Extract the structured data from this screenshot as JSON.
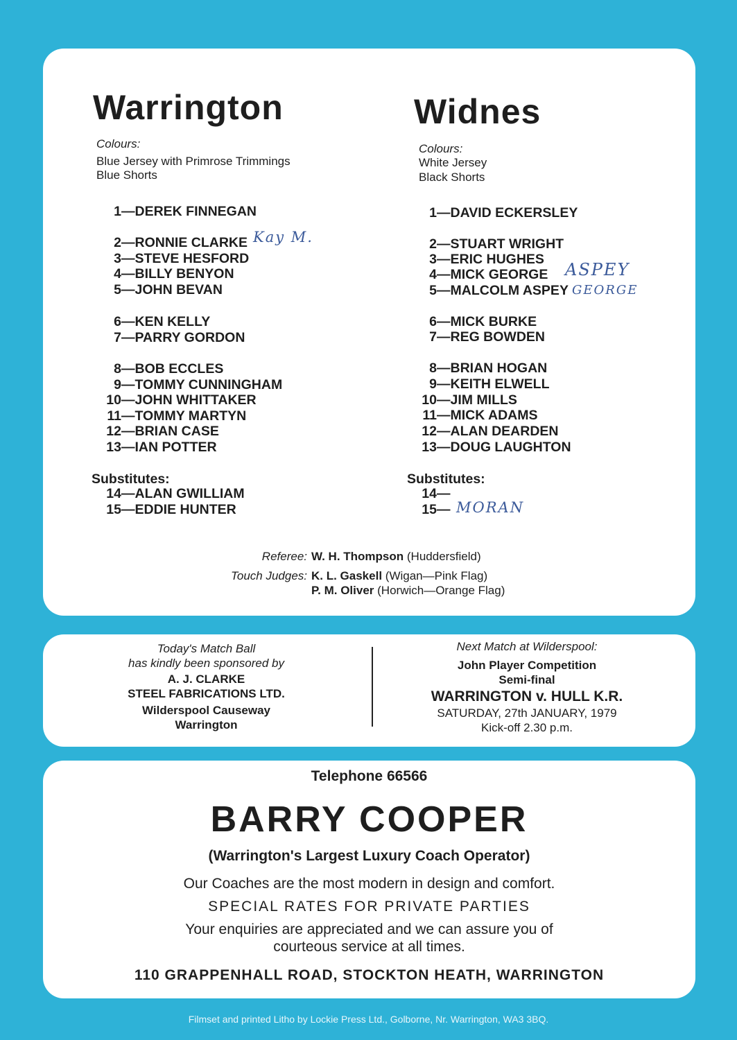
{
  "home": {
    "name": "Warrington",
    "colours_label": "Colours:",
    "colours": [
      "Blue Jersey with Primrose Trimmings",
      "Blue Shorts"
    ],
    "players": [
      {
        "no": "1",
        "name": "DEREK FINNEGAN"
      },
      {
        "no": "2",
        "name": "RONNIE CLARKE"
      },
      {
        "no": "3",
        "name": "STEVE HESFORD"
      },
      {
        "no": "4",
        "name": "BILLY BENYON"
      },
      {
        "no": "5",
        "name": "JOHN BEVAN"
      },
      {
        "no": "6",
        "name": "KEN KELLY"
      },
      {
        "no": "7",
        "name": "PARRY GORDON"
      },
      {
        "no": "8",
        "name": "BOB ECCLES"
      },
      {
        "no": "9",
        "name": "TOMMY CUNNINGHAM"
      },
      {
        "no": "10",
        "name": "JOHN WHITTAKER"
      },
      {
        "no": "11",
        "name": "TOMMY MARTYN"
      },
      {
        "no": "12",
        "name": "BRIAN CASE"
      },
      {
        "no": "13",
        "name": "IAN POTTER"
      }
    ],
    "subs_label": "Substitutes:",
    "subs": [
      {
        "no": "14",
        "name": "ALAN GWILLIAM"
      },
      {
        "no": "15",
        "name": "EDDIE HUNTER"
      }
    ]
  },
  "away": {
    "name": "Widnes",
    "colours_label": "Colours:",
    "colours": [
      "White Jersey",
      "Black Shorts"
    ],
    "players": [
      {
        "no": "1",
        "name": "DAVID ECKERSLEY"
      },
      {
        "no": "2",
        "name": "STUART WRIGHT"
      },
      {
        "no": "3",
        "name": "ERIC HUGHES"
      },
      {
        "no": "4",
        "name": "MICK GEORGE"
      },
      {
        "no": "5",
        "name": "MALCOLM ASPEY"
      },
      {
        "no": "6",
        "name": "MICK BURKE"
      },
      {
        "no": "7",
        "name": "REG BOWDEN"
      },
      {
        "no": "8",
        "name": "BRIAN HOGAN"
      },
      {
        "no": "9",
        "name": "KEITH ELWELL"
      },
      {
        "no": "10",
        "name": "JIM MILLS"
      },
      {
        "no": "11",
        "name": "MICK ADAMS"
      },
      {
        "no": "12",
        "name": "ALAN DEARDEN"
      },
      {
        "no": "13",
        "name": "DOUG LAUGHTON"
      }
    ],
    "subs_label": "Substitutes:",
    "subs": [
      {
        "no": "14",
        "name": ""
      },
      {
        "no": "15",
        "name": ""
      }
    ]
  },
  "handwritten": {
    "home_2": "Kay M.",
    "away_4": "ASPEY",
    "away_5": "GEORGE",
    "away_15": "MORAN"
  },
  "officials": {
    "referee_label": "Referee:",
    "referee_name": "W. H. Thompson",
    "referee_club": "(Huddersfield)",
    "touch_label": "Touch Judges:",
    "touch1_name": "K. L. Gaskell",
    "touch1_club": "(Wigan—Pink Flag)",
    "touch2_name": "P. M. Oliver",
    "touch2_club": "(Horwich—Orange Flag)"
  },
  "sponsor": {
    "line1": "Today's Match Ball",
    "line2": "has kindly been sponsored by",
    "name1": "A. J. CLARKE",
    "name2": "STEEL FABRICATIONS LTD.",
    "addr1": "Wilderspool Causeway",
    "addr2": "Warrington"
  },
  "next_match": {
    "label": "Next Match at Wilderspool:",
    "comp1": "John Player Competition",
    "comp2": "Semi-final",
    "fixture": "WARRINGTON v. HULL K.R.",
    "date": "SATURDAY, 27th JANUARY, 1979",
    "kickoff": "Kick-off 2.30 p.m."
  },
  "advert": {
    "telephone": "Telephone 66566",
    "company": "BARRY COOPER",
    "tagline": "(Warrington's Largest Luxury Coach Operator)",
    "line1": "Our Coaches are the most modern in design and comfort.",
    "line2": "SPECIAL RATES FOR PRIVATE PARTIES",
    "line3": "Your enquiries are appreciated and we can assure you of",
    "line4": "courteous service at all times.",
    "address": "110 GRAPPENHALL ROAD, STOCKTON HEATH, WARRINGTON"
  },
  "footer": "Filmset and printed Litho by Lockie Press Ltd., Golborne, Nr. Warrington, WA3 3BQ.",
  "colors": {
    "background": "#2eb2d7",
    "panel": "#ffffff",
    "text": "#1e1e1e",
    "handwriting": "#3b5a9a"
  }
}
